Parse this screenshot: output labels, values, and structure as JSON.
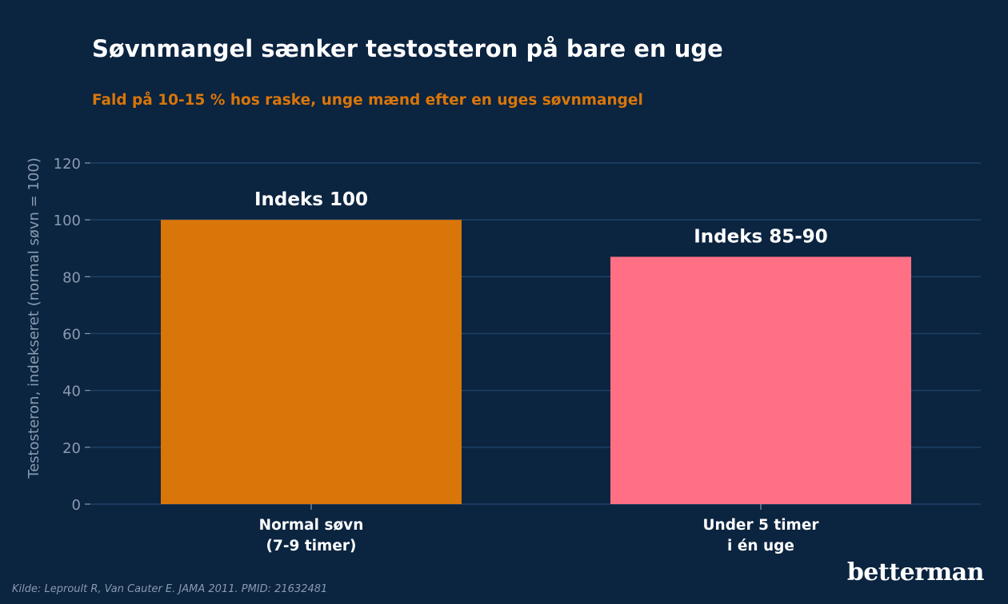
{
  "title": "Søvnmangel sænker testosteron på bare en uge",
  "subtitle": "Fald på 10-15 % hos raske, unge mænd efter en uges søvnmangel",
  "source": "Kilde: Leproult R, Van Cauter E. JAMA 2011. PMID: 21632481",
  "brand": "betterman",
  "colors": {
    "background": "#0b2440",
    "title": "#ffffff",
    "subtitle": "#d9760a",
    "gridline": "#1f4168",
    "axis_text": "#8a9bb0"
  },
  "chart_data": {
    "type": "bar",
    "title": "Søvnmangel sænker testosteron på bare en uge",
    "subtitle": "Fald på 10-15 % hos raske, unge mænd efter en uges søvnmangel",
    "xlabel": "",
    "ylabel": "Testosteron, indekseret (normal søvn = 100)",
    "ylim": [
      0,
      120
    ],
    "yticks": [
      0,
      20,
      40,
      60,
      80,
      100,
      120
    ],
    "grid": true,
    "categories": [
      [
        "Normal søvn",
        "(7-9 timer)"
      ],
      [
        "Under 5 timer",
        "i én uge"
      ]
    ],
    "values": [
      100,
      87
    ],
    "bar_colors": [
      "#d9760a",
      "#ff7085"
    ],
    "data_labels": [
      "Indeks 100",
      "Indeks 85-90"
    ]
  }
}
